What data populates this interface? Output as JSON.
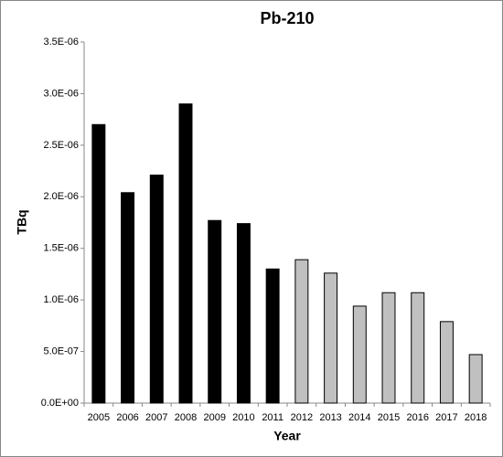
{
  "chart_data": {
    "type": "bar",
    "title": "Pb-210",
    "x_label": "Year",
    "y_label": "TBq",
    "categories": [
      "2005",
      "2006",
      "2007",
      "2008",
      "2009",
      "2010",
      "2011",
      "2012",
      "2013",
      "2014",
      "2015",
      "2016",
      "2017",
      "2018"
    ],
    "values": [
      2.7e-06,
      2.04e-06,
      2.21e-06,
      2.9e-06,
      1.77e-06,
      1.74e-06,
      1.3e-06,
      1.39e-06,
      1.26e-06,
      9.4e-07,
      1.07e-06,
      1.07e-06,
      7.9e-07,
      4.7e-07
    ],
    "colors": [
      "#000000",
      "#000000",
      "#000000",
      "#000000",
      "#000000",
      "#000000",
      "#000000",
      "#c0c0c0",
      "#c0c0c0",
      "#c0c0c0",
      "#c0c0c0",
      "#c0c0c0",
      "#c0c0c0",
      "#c0c0c0"
    ],
    "ylim": [
      0,
      3.5e-06
    ],
    "yticks": [
      {
        "value": 0,
        "label": "0.0E+00"
      },
      {
        "value": 5e-07,
        "label": "5.0E-07"
      },
      {
        "value": 1e-06,
        "label": "1.0E-06"
      },
      {
        "value": 1.5e-06,
        "label": "1.5E-06"
      },
      {
        "value": 2e-06,
        "label": "2.0E-06"
      },
      {
        "value": 2.5e-06,
        "label": "2.5E-06"
      },
      {
        "value": 3e-06,
        "label": "3.0E-06"
      },
      {
        "value": 3.5e-06,
        "label": "3.5E-06"
      }
    ],
    "grid": false
  }
}
